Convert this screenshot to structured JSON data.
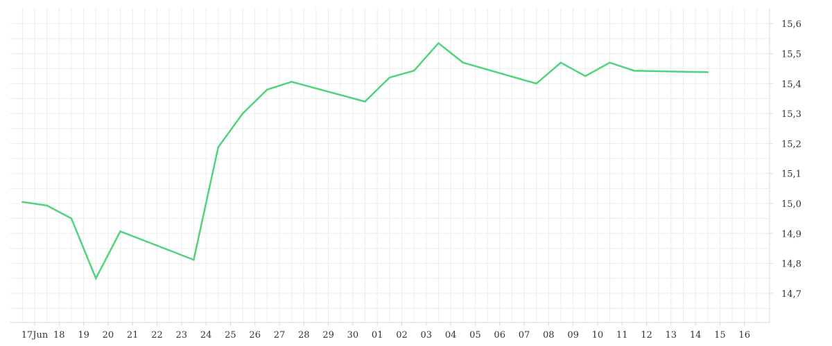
{
  "chart_data": {
    "type": "line",
    "title": "",
    "xlabel": "",
    "ylabel": "",
    "x_tick_labels": [
      "17Jun",
      "18",
      "19",
      "20",
      "21",
      "22",
      "23",
      "24",
      "25",
      "26",
      "27",
      "28",
      "29",
      "30",
      "01",
      "02",
      "03",
      "04",
      "05",
      "06",
      "07",
      "08",
      "09",
      "10",
      "11",
      "12",
      "13",
      "14",
      "15",
      "16"
    ],
    "y_tick_labels": [
      "14,7",
      "14,8",
      "14,9",
      "15,0",
      "15,1",
      "15,2",
      "15,3",
      "15,4",
      "15,5",
      "15,6"
    ],
    "ylim": [
      14.6,
      15.62
    ],
    "y_axis_side": "right",
    "grid": true,
    "series": [
      {
        "color": "#4fd47a",
        "points": [
          {
            "x": "16.5",
            "y": 15.005
          },
          {
            "x": "17.5",
            "y": 14.993
          },
          {
            "x": "18.5",
            "y": 14.95
          },
          {
            "x": "19.5",
            "y": 14.75
          },
          {
            "x": "20.5",
            "y": 14.907
          },
          {
            "x": "23.5",
            "y": 14.812
          },
          {
            "x": "24.5",
            "y": 15.188
          },
          {
            "x": "25.5",
            "y": 15.3
          },
          {
            "x": "26.5",
            "y": 15.38
          },
          {
            "x": "27.5",
            "y": 15.406
          },
          {
            "x": "30.5",
            "y": 15.34
          },
          {
            "x": "01.5",
            "y": 15.42
          },
          {
            "x": "02.5",
            "y": 15.443
          },
          {
            "x": "03.5",
            "y": 15.535
          },
          {
            "x": "04.5",
            "y": 15.47
          },
          {
            "x": "07.5",
            "y": 15.4
          },
          {
            "x": "08.5",
            "y": 15.47
          },
          {
            "x": "09.5",
            "y": 15.425
          },
          {
            "x": "10.5",
            "y": 15.47
          },
          {
            "x": "11.5",
            "y": 15.443
          },
          {
            "x": "14.5",
            "y": 15.438
          }
        ]
      }
    ]
  }
}
